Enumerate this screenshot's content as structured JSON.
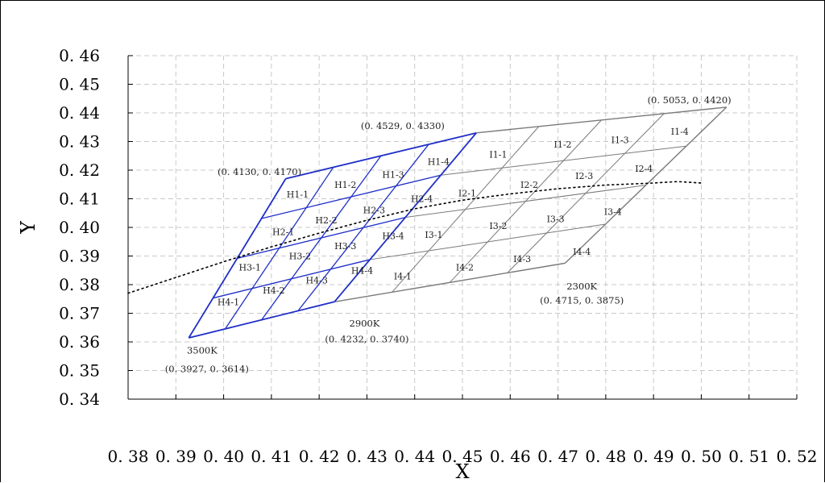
{
  "chart_data": {
    "type": "scatter",
    "xlabel": "X",
    "ylabel": "Y",
    "xlim": [
      0.38,
      0.52
    ],
    "ylim": [
      0.34,
      0.46
    ],
    "x_ticks": [
      "0. 38",
      "0. 39",
      "0. 40",
      "0. 41",
      "0. 42",
      "0. 43",
      "0. 44",
      "0. 45",
      "0. 46",
      "0. 47",
      "0. 48",
      "0. 49",
      "0. 50",
      "0. 51",
      "0. 52"
    ],
    "y_ticks": [
      "0. 34",
      "0. 35",
      "0. 36",
      "0. 37",
      "0. 38",
      "0. 39",
      "0. 40",
      "0. 41",
      "0. 42",
      "0. 43",
      "0. 44",
      "0. 45",
      "0. 46"
    ],
    "grid": true,
    "corners": {
      "p3500": [
        0.3927,
        0.3614
      ],
      "p2900": [
        0.4232,
        0.374
      ],
      "p2300": [
        0.4715,
        0.3875
      ],
      "h_top_left": [
        0.413,
        0.417
      ],
      "h_top_right": [
        0.4529,
        0.433
      ],
      "i_top_right": [
        0.5053,
        0.442
      ]
    },
    "colors": {
      "h_grid": "#1f2fc8",
      "i_grid": "#7a7a7a",
      "i_border": "#6e6e6e"
    },
    "blackbody_curve": [
      [
        0.38,
        0.377
      ],
      [
        0.39,
        0.3825
      ],
      [
        0.4,
        0.388
      ],
      [
        0.41,
        0.3932
      ],
      [
        0.42,
        0.398
      ],
      [
        0.43,
        0.4025
      ],
      [
        0.44,
        0.4065
      ],
      [
        0.45,
        0.4095
      ],
      [
        0.46,
        0.4117
      ],
      [
        0.47,
        0.4135
      ],
      [
        0.48,
        0.4148
      ],
      [
        0.49,
        0.4155
      ],
      [
        0.495,
        0.416
      ],
      [
        0.5,
        0.4155
      ]
    ],
    "bin_labels": [
      {
        "text": "H1-1",
        "x": 0.4155,
        "y": 0.4115
      },
      {
        "text": "H1-2",
        "x": 0.4255,
        "y": 0.415
      },
      {
        "text": "H1-3",
        "x": 0.4355,
        "y": 0.4185
      },
      {
        "text": "H1-4",
        "x": 0.445,
        "y": 0.423
      },
      {
        "text": "H2-1",
        "x": 0.4125,
        "y": 0.3985
      },
      {
        "text": "H2-2",
        "x": 0.4215,
        "y": 0.4025
      },
      {
        "text": "H2-3",
        "x": 0.4315,
        "y": 0.406
      },
      {
        "text": "H2-4",
        "x": 0.4415,
        "y": 0.41
      },
      {
        "text": "H3-1",
        "x": 0.4055,
        "y": 0.386
      },
      {
        "text": "H3-2",
        "x": 0.416,
        "y": 0.39
      },
      {
        "text": "H3-3",
        "x": 0.4255,
        "y": 0.3935
      },
      {
        "text": "H3-4",
        "x": 0.4355,
        "y": 0.397
      },
      {
        "text": "H4-1",
        "x": 0.401,
        "y": 0.374
      },
      {
        "text": "H4-2",
        "x": 0.4105,
        "y": 0.378
      },
      {
        "text": "H4-3",
        "x": 0.4195,
        "y": 0.3815
      },
      {
        "text": "H4-4",
        "x": 0.429,
        "y": 0.385
      },
      {
        "text": "I1-1",
        "x": 0.4575,
        "y": 0.4255
      },
      {
        "text": "I1-2",
        "x": 0.471,
        "y": 0.429
      },
      {
        "text": "I1-3",
        "x": 0.483,
        "y": 0.4305
      },
      {
        "text": "I1-4",
        "x": 0.4955,
        "y": 0.4335
      },
      {
        "text": "I2-1",
        "x": 0.451,
        "y": 0.412
      },
      {
        "text": "I2-2",
        "x": 0.464,
        "y": 0.415
      },
      {
        "text": "I2-3",
        "x": 0.4755,
        "y": 0.418
      },
      {
        "text": "I2-4",
        "x": 0.488,
        "y": 0.4205
      },
      {
        "text": "I3-1",
        "x": 0.444,
        "y": 0.3975
      },
      {
        "text": "I3-2",
        "x": 0.4575,
        "y": 0.4005
      },
      {
        "text": "I3-3",
        "x": 0.4695,
        "y": 0.403
      },
      {
        "text": "I3-4",
        "x": 0.4815,
        "y": 0.4055
      },
      {
        "text": "I4-1",
        "x": 0.4375,
        "y": 0.383
      },
      {
        "text": "I4-2",
        "x": 0.4505,
        "y": 0.386
      },
      {
        "text": "I4-3",
        "x": 0.4625,
        "y": 0.389
      },
      {
        "text": "I4-4",
        "x": 0.475,
        "y": 0.3915
      }
    ],
    "annotations": [
      {
        "text": "3500K",
        "x": 0.3955,
        "y": 0.357
      },
      {
        "text": "(0. 3927, 0. 3614)",
        "x": 0.3965,
        "y": 0.3505
      },
      {
        "text": "2900K",
        "x": 0.4295,
        "y": 0.3665
      },
      {
        "text": "(0. 4232, 0. 3740)",
        "x": 0.43,
        "y": 0.361
      },
      {
        "text": "2300K",
        "x": 0.475,
        "y": 0.3795
      },
      {
        "text": "(0. 4715, 0. 3875)",
        "x": 0.475,
        "y": 0.3745
      },
      {
        "text": "(0. 4130, 0. 4170)",
        "x": 0.4075,
        "y": 0.4195
      },
      {
        "text": "(0. 4529, 0. 4330)",
        "x": 0.4375,
        "y": 0.4355
      },
      {
        "text": "(0. 5053, 0. 4420)",
        "x": 0.4975,
        "y": 0.4445
      }
    ]
  }
}
